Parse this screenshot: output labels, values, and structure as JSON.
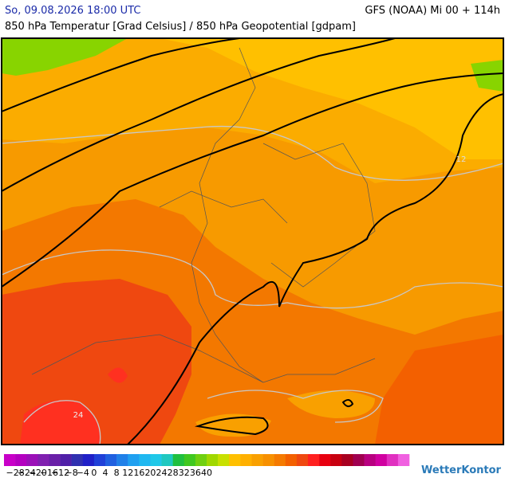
{
  "header": {
    "datetime": "So, 09.08.2026 18:00 UTC",
    "model": "GFS (NOAA) Mi 00 + 114h",
    "subtitle": "850 hPa Temperatur [Grad Celsius] / 850 hPa Geopotential [gdpam]"
  },
  "map": {
    "contour_labels": [
      "24",
      "12"
    ]
  },
  "legend": {
    "ticks": [
      "−28",
      "−24",
      "−20",
      "−16",
      "−12",
      "−8",
      "−4",
      "0",
      "4",
      "8",
      "12",
      "16",
      "20",
      "24",
      "28",
      "32",
      "36",
      "40"
    ],
    "colors": [
      "#c800c8",
      "#b400c0",
      "#9b10b8",
      "#8020b0",
      "#6a20a8",
      "#5020a8",
      "#3030b0",
      "#2020c8",
      "#2040d8",
      "#2060e0",
      "#2080e8",
      "#20a0f0",
      "#20b8f0",
      "#20c8e8",
      "#20c8c0",
      "#20c040",
      "#40c820",
      "#70d010",
      "#a0d800",
      "#c8e000",
      "#ffc000",
      "#ffb000",
      "#f9a000",
      "#f79000",
      "#f57a00",
      "#f36000",
      "#ef4810",
      "#ff2020",
      "#e80010",
      "#c80010",
      "#a80020",
      "#a00050",
      "#b80080",
      "#d000a0",
      "#e030c0",
      "#f060e0"
    ],
    "logo": "WetterKontor"
  }
}
